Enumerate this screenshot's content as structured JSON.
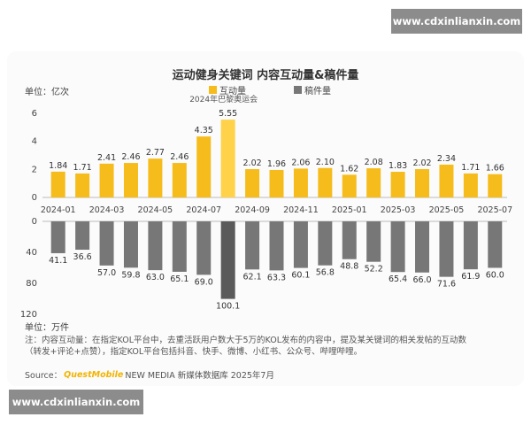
{
  "watermark_top": "www.cdxinlianxin.com",
  "watermark_bottom": "www.cdxinlianxin.com",
  "title": "运动健身关键词 内容互动量&稿件量",
  "legend": [
    {
      "label": "互动量",
      "color": "#f5bc1c"
    },
    {
      "label": "稿件量",
      "color": "#777777"
    }
  ],
  "unit_top": "单位：亿次",
  "unit_bottom": "单位：万件",
  "annotation": "2024年巴黎奥运会",
  "note_line1": "注：内容互动量：在指定KOL平台中，去重活跃用户数大于5万的KOL发布的内容中，提及某关键词的相关发帖的互动数",
  "note_line2": "（转发+评论+点赞），指定KOL平台包括抖音、快手、微博、小红书、公众号、哔哩哔哩。",
  "source_prefix": "Source：",
  "source_brand": "QuestMobile",
  "source_suffix": "NEW MEDIA 新媒体数据库 2025年7月",
  "chart_data": {
    "type": "bar",
    "categories": [
      "2024-01",
      "2024-02",
      "2024-03",
      "2024-04",
      "2024-05",
      "2024-06",
      "2024-07",
      "2024-08",
      "2024-09",
      "2024-10",
      "2024-11",
      "2024-12",
      "2025-01",
      "2025-02",
      "2025-03",
      "2025-04",
      "2025-05",
      "2025-06",
      "2025-07"
    ],
    "tick_labels": [
      "2024-01",
      "2024-03",
      "2024-05",
      "2024-07",
      "2024-09",
      "2024-11",
      "2025-01",
      "2025-03",
      "2025-05",
      "2025-07"
    ],
    "series": [
      {
        "name": "互动量",
        "color": "#f5bc1c",
        "highlight": "#ffd24a",
        "values": [
          1.84,
          1.71,
          2.41,
          2.46,
          2.77,
          2.46,
          4.35,
          5.55,
          2.02,
          1.96,
          2.06,
          2.1,
          1.62,
          2.08,
          1.83,
          2.02,
          2.34,
          1.71,
          1.66
        ],
        "ylim": [
          0,
          6
        ],
        "yticks": [
          0,
          2,
          4,
          6
        ]
      },
      {
        "name": "稿件量",
        "color": "#777777",
        "highlight": "#5a5a5a",
        "values": [
          41.1,
          36.6,
          57.0,
          59.8,
          63.0,
          65.1,
          69.0,
          100.1,
          62.1,
          63.3,
          60.1,
          56.8,
          48.8,
          52.2,
          65.4,
          66.0,
          71.6,
          61.9,
          60.0
        ],
        "ylim": [
          0,
          120
        ],
        "yticks": [
          0,
          40,
          80,
          120
        ],
        "inverted": true
      }
    ],
    "highlight_index": 7
  }
}
